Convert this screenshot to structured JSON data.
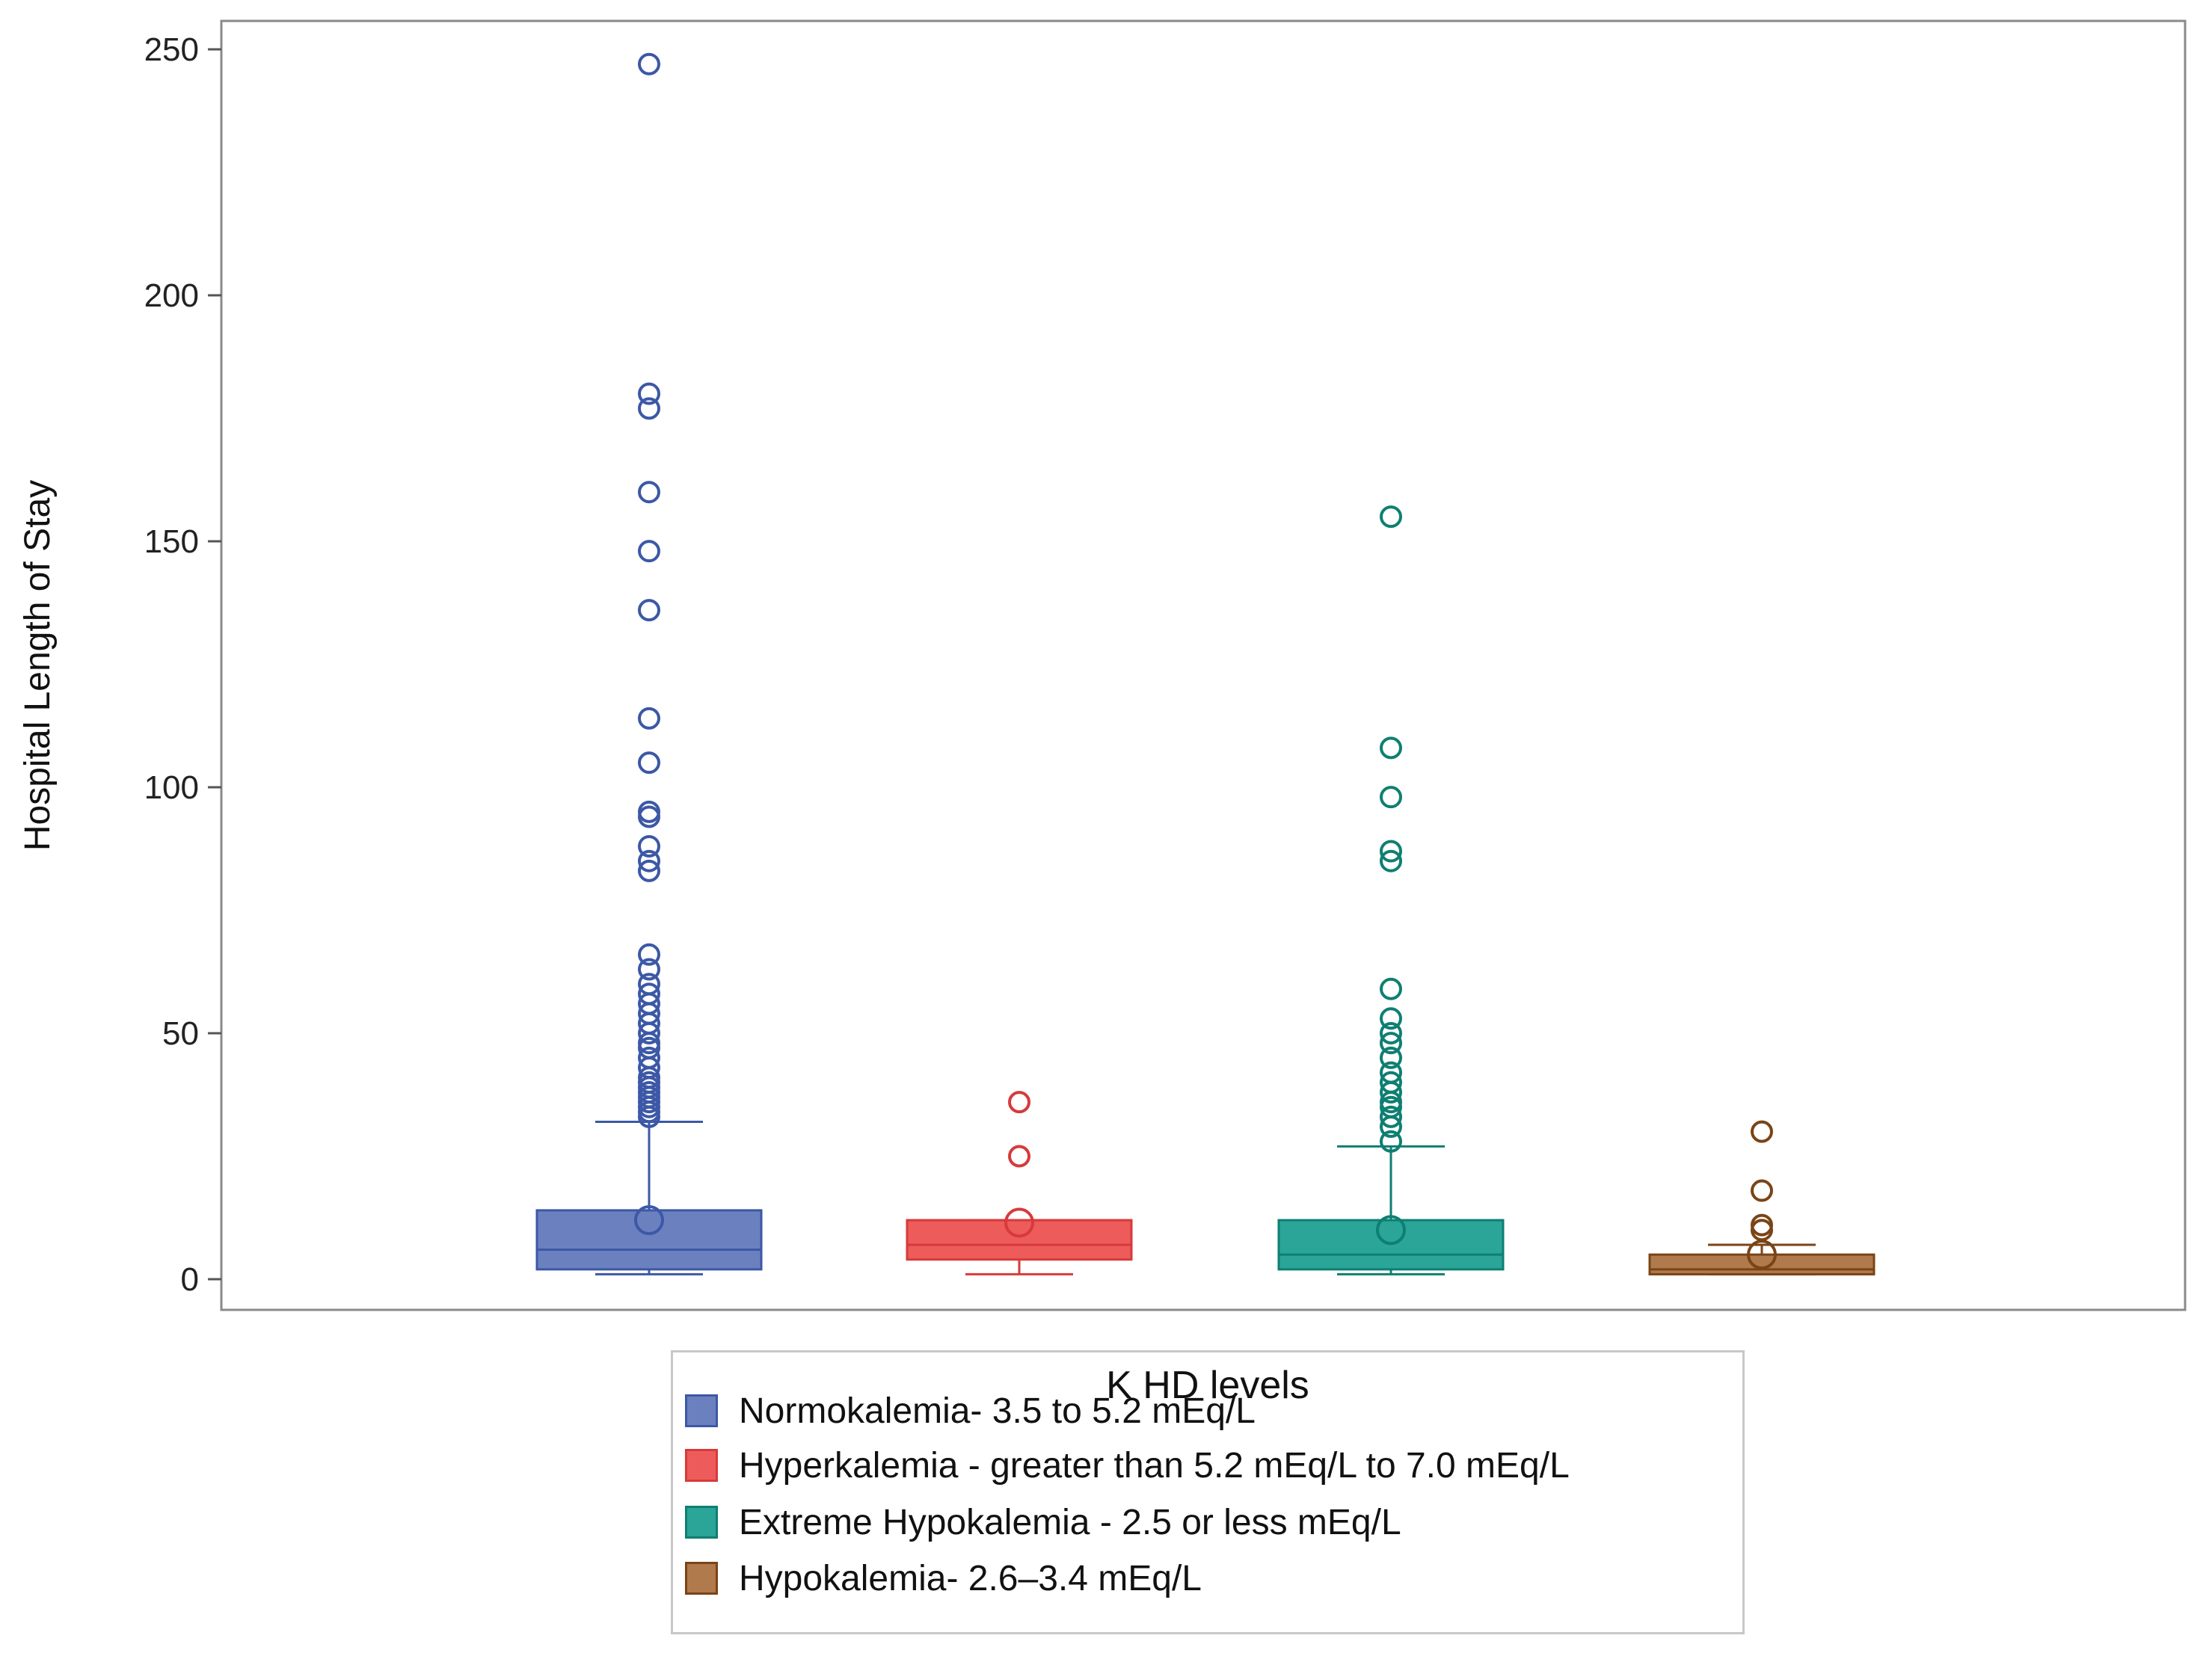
{
  "chart_data": {
    "type": "box",
    "title": "",
    "xlabel": "",
    "ylabel": "Hospital Length of Stay",
    "ylim": [
      -7,
      255
    ],
    "y_ticks": [
      0,
      50,
      100,
      150,
      200,
      250
    ],
    "grid": false,
    "legend": {
      "title": "K HD levels",
      "placement": "bottom-center"
    },
    "series": [
      {
        "name": "Normokalemia- 3.5 to 5.2 mEq/L",
        "color": "#3c58a6",
        "fill": "#6b80bf",
        "min": 1,
        "q1": 2,
        "median": 6,
        "q3": 14,
        "whisker_high": 32,
        "mean": 12,
        "outliers": [
          33,
          34,
          35,
          36,
          37,
          38,
          39,
          40,
          41,
          43,
          45,
          47,
          48,
          50,
          52,
          54,
          56,
          58,
          60,
          63,
          66,
          83,
          85,
          88,
          94,
          95,
          105,
          114,
          136,
          148,
          160,
          177,
          180,
          247
        ]
      },
      {
        "name": "Hyperkalemia - greater than 5.2 mEq/L to 7.0 mEq/L",
        "color": "#d73a3a",
        "fill": "#ee5b5b",
        "min": 1,
        "q1": 4,
        "median": 7,
        "q3": 12,
        "whisker_high": 12,
        "mean": 11.5,
        "outliers": [
          25,
          36
        ]
      },
      {
        "name": "Extreme Hypokalemia - 2.5 or less mEq/L",
        "color": "#0e7f72",
        "fill": "#2aa597",
        "min": 1,
        "q1": 2,
        "median": 5,
        "q3": 12,
        "whisker_high": 27,
        "mean": 10,
        "outliers": [
          28,
          31,
          33,
          35,
          36,
          38,
          40,
          42,
          45,
          48,
          50,
          53,
          59,
          85,
          87,
          98,
          108,
          155
        ]
      },
      {
        "name": "Hypokalemia-  2.6–3.4 mEq/L",
        "color": "#7a4416",
        "fill": "#b07a4c",
        "min": 1,
        "q1": 1,
        "median": 2,
        "q3": 5,
        "whisker_high": 7,
        "mean": 5,
        "outliers": [
          10,
          11,
          18,
          30
        ]
      }
    ]
  }
}
